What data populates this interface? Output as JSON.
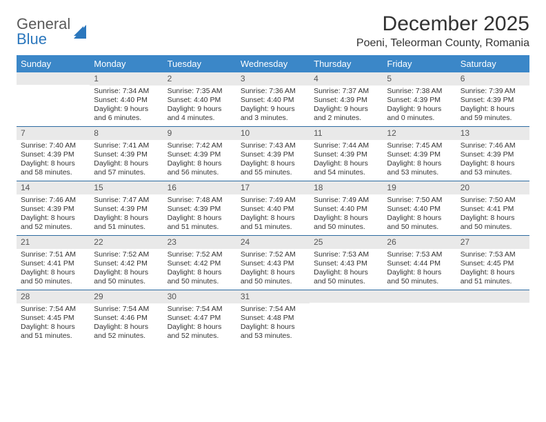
{
  "logo": {
    "text1": "General",
    "text2": "Blue"
  },
  "title": "December 2025",
  "location": "Poeni, Teleorman County, Romania",
  "day_names": [
    "Sunday",
    "Monday",
    "Tuesday",
    "Wednesday",
    "Thursday",
    "Friday",
    "Saturday"
  ],
  "colors": {
    "header_bg": "#3b87c8",
    "header_text": "#ffffff",
    "daynum_bg": "#e9e9e9",
    "week_border": "#2b6aa0",
    "text": "#333333"
  },
  "weeks": [
    [
      {
        "n": "",
        "sr": "",
        "ss": "",
        "dl": ""
      },
      {
        "n": "1",
        "sr": "Sunrise: 7:34 AM",
        "ss": "Sunset: 4:40 PM",
        "dl": "Daylight: 9 hours and 6 minutes."
      },
      {
        "n": "2",
        "sr": "Sunrise: 7:35 AM",
        "ss": "Sunset: 4:40 PM",
        "dl": "Daylight: 9 hours and 4 minutes."
      },
      {
        "n": "3",
        "sr": "Sunrise: 7:36 AM",
        "ss": "Sunset: 4:40 PM",
        "dl": "Daylight: 9 hours and 3 minutes."
      },
      {
        "n": "4",
        "sr": "Sunrise: 7:37 AM",
        "ss": "Sunset: 4:39 PM",
        "dl": "Daylight: 9 hours and 2 minutes."
      },
      {
        "n": "5",
        "sr": "Sunrise: 7:38 AM",
        "ss": "Sunset: 4:39 PM",
        "dl": "Daylight: 9 hours and 0 minutes."
      },
      {
        "n": "6",
        "sr": "Sunrise: 7:39 AM",
        "ss": "Sunset: 4:39 PM",
        "dl": "Daylight: 8 hours and 59 minutes."
      }
    ],
    [
      {
        "n": "7",
        "sr": "Sunrise: 7:40 AM",
        "ss": "Sunset: 4:39 PM",
        "dl": "Daylight: 8 hours and 58 minutes."
      },
      {
        "n": "8",
        "sr": "Sunrise: 7:41 AM",
        "ss": "Sunset: 4:39 PM",
        "dl": "Daylight: 8 hours and 57 minutes."
      },
      {
        "n": "9",
        "sr": "Sunrise: 7:42 AM",
        "ss": "Sunset: 4:39 PM",
        "dl": "Daylight: 8 hours and 56 minutes."
      },
      {
        "n": "10",
        "sr": "Sunrise: 7:43 AM",
        "ss": "Sunset: 4:39 PM",
        "dl": "Daylight: 8 hours and 55 minutes."
      },
      {
        "n": "11",
        "sr": "Sunrise: 7:44 AM",
        "ss": "Sunset: 4:39 PM",
        "dl": "Daylight: 8 hours and 54 minutes."
      },
      {
        "n": "12",
        "sr": "Sunrise: 7:45 AM",
        "ss": "Sunset: 4:39 PM",
        "dl": "Daylight: 8 hours and 53 minutes."
      },
      {
        "n": "13",
        "sr": "Sunrise: 7:46 AM",
        "ss": "Sunset: 4:39 PM",
        "dl": "Daylight: 8 hours and 53 minutes."
      }
    ],
    [
      {
        "n": "14",
        "sr": "Sunrise: 7:46 AM",
        "ss": "Sunset: 4:39 PM",
        "dl": "Daylight: 8 hours and 52 minutes."
      },
      {
        "n": "15",
        "sr": "Sunrise: 7:47 AM",
        "ss": "Sunset: 4:39 PM",
        "dl": "Daylight: 8 hours and 51 minutes."
      },
      {
        "n": "16",
        "sr": "Sunrise: 7:48 AM",
        "ss": "Sunset: 4:39 PM",
        "dl": "Daylight: 8 hours and 51 minutes."
      },
      {
        "n": "17",
        "sr": "Sunrise: 7:49 AM",
        "ss": "Sunset: 4:40 PM",
        "dl": "Daylight: 8 hours and 51 minutes."
      },
      {
        "n": "18",
        "sr": "Sunrise: 7:49 AM",
        "ss": "Sunset: 4:40 PM",
        "dl": "Daylight: 8 hours and 50 minutes."
      },
      {
        "n": "19",
        "sr": "Sunrise: 7:50 AM",
        "ss": "Sunset: 4:40 PM",
        "dl": "Daylight: 8 hours and 50 minutes."
      },
      {
        "n": "20",
        "sr": "Sunrise: 7:50 AM",
        "ss": "Sunset: 4:41 PM",
        "dl": "Daylight: 8 hours and 50 minutes."
      }
    ],
    [
      {
        "n": "21",
        "sr": "Sunrise: 7:51 AM",
        "ss": "Sunset: 4:41 PM",
        "dl": "Daylight: 8 hours and 50 minutes."
      },
      {
        "n": "22",
        "sr": "Sunrise: 7:52 AM",
        "ss": "Sunset: 4:42 PM",
        "dl": "Daylight: 8 hours and 50 minutes."
      },
      {
        "n": "23",
        "sr": "Sunrise: 7:52 AM",
        "ss": "Sunset: 4:42 PM",
        "dl": "Daylight: 8 hours and 50 minutes."
      },
      {
        "n": "24",
        "sr": "Sunrise: 7:52 AM",
        "ss": "Sunset: 4:43 PM",
        "dl": "Daylight: 8 hours and 50 minutes."
      },
      {
        "n": "25",
        "sr": "Sunrise: 7:53 AM",
        "ss": "Sunset: 4:43 PM",
        "dl": "Daylight: 8 hours and 50 minutes."
      },
      {
        "n": "26",
        "sr": "Sunrise: 7:53 AM",
        "ss": "Sunset: 4:44 PM",
        "dl": "Daylight: 8 hours and 50 minutes."
      },
      {
        "n": "27",
        "sr": "Sunrise: 7:53 AM",
        "ss": "Sunset: 4:45 PM",
        "dl": "Daylight: 8 hours and 51 minutes."
      }
    ],
    [
      {
        "n": "28",
        "sr": "Sunrise: 7:54 AM",
        "ss": "Sunset: 4:45 PM",
        "dl": "Daylight: 8 hours and 51 minutes."
      },
      {
        "n": "29",
        "sr": "Sunrise: 7:54 AM",
        "ss": "Sunset: 4:46 PM",
        "dl": "Daylight: 8 hours and 52 minutes."
      },
      {
        "n": "30",
        "sr": "Sunrise: 7:54 AM",
        "ss": "Sunset: 4:47 PM",
        "dl": "Daylight: 8 hours and 52 minutes."
      },
      {
        "n": "31",
        "sr": "Sunrise: 7:54 AM",
        "ss": "Sunset: 4:48 PM",
        "dl": "Daylight: 8 hours and 53 minutes."
      },
      {
        "n": "",
        "sr": "",
        "ss": "",
        "dl": ""
      },
      {
        "n": "",
        "sr": "",
        "ss": "",
        "dl": ""
      },
      {
        "n": "",
        "sr": "",
        "ss": "",
        "dl": ""
      }
    ]
  ]
}
